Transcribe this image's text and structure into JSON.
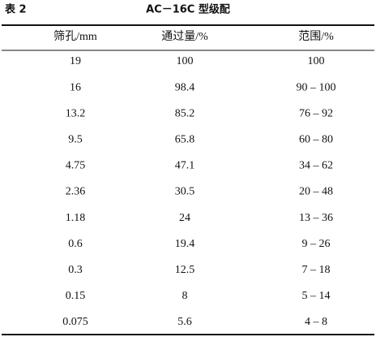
{
  "caption": {
    "label": "表 2",
    "title": "AC－16C 型级配"
  },
  "table": {
    "header": [
      "筛孔/mm",
      "通过量/%",
      "范围/%"
    ],
    "rows": [
      [
        "19",
        "100",
        "100"
      ],
      [
        "16",
        "98.4",
        "90 – 100"
      ],
      [
        "13.2",
        "85.2",
        "76 – 92"
      ],
      [
        "9.5",
        "65.8",
        "60 – 80"
      ],
      [
        "4.75",
        "47.1",
        "34 – 62"
      ],
      [
        "2.36",
        "30.5",
        "20 – 48"
      ],
      [
        "1.18",
        "24",
        "13 – 36"
      ],
      [
        "0.6",
        "19.4",
        "9 – 26"
      ],
      [
        "0.3",
        "12.5",
        "7 – 18"
      ],
      [
        "0.15",
        "8",
        "5 – 14"
      ],
      [
        "0.075",
        "5.6",
        "4 – 8"
      ]
    ]
  }
}
